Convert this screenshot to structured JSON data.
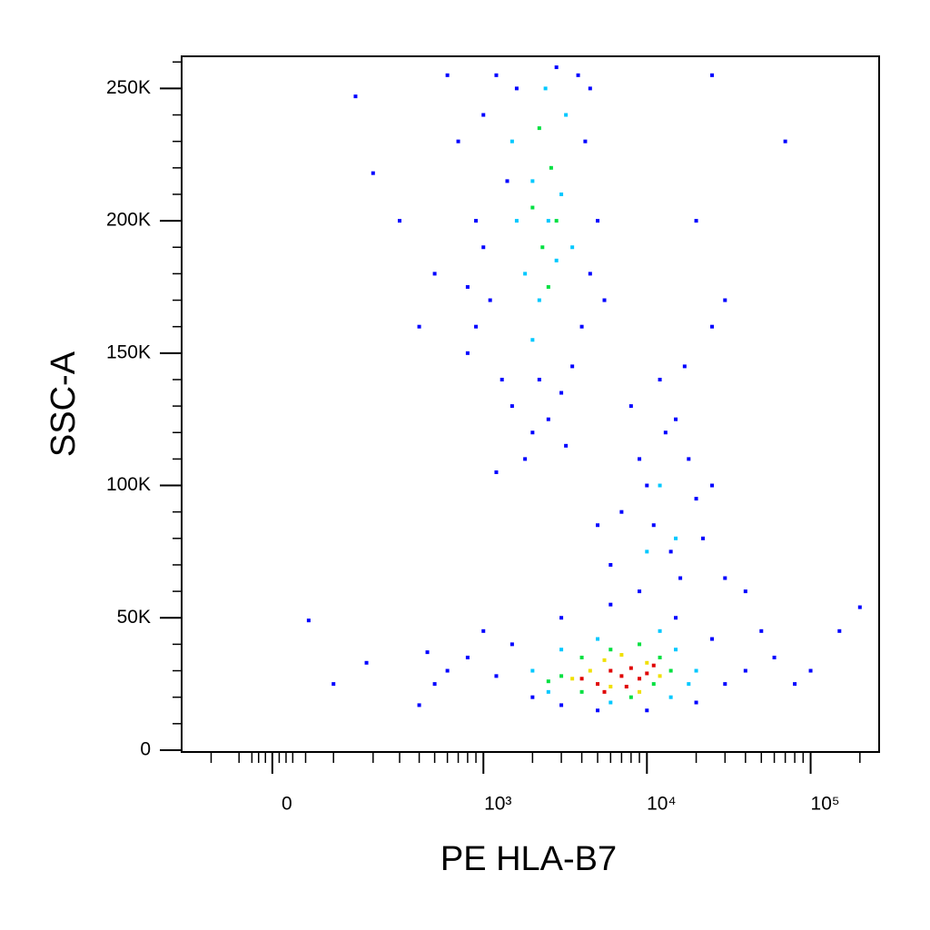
{
  "chart_data": {
    "type": "scatter",
    "x_label": "PE HLA-B7",
    "y_label": "SSC-A",
    "xscale": "biexponential",
    "xlim": [
      -170,
      262144
    ],
    "ylim": [
      -700,
      262144
    ],
    "xticks": [
      {
        "value": 0,
        "label": "0"
      },
      {
        "value": 1000,
        "label": "10³"
      },
      {
        "value": 10000,
        "label": "10⁴"
      },
      {
        "value": 100000,
        "label": "10⁵"
      }
    ],
    "xminorticks": [
      -100,
      -50,
      -30,
      -20,
      -10,
      10,
      20,
      30,
      50,
      100,
      200,
      300,
      400,
      500,
      600,
      700,
      800,
      900,
      2000,
      3000,
      4000,
      5000,
      6000,
      7000,
      8000,
      9000,
      20000,
      30000,
      40000,
      50000,
      60000,
      70000,
      80000,
      90000,
      200000
    ],
    "yticks": [
      0,
      {
        "value": 50000,
        "label": "50K"
      },
      {
        "value": 100000,
        "label": "100K"
      },
      {
        "value": 150000,
        "label": "150K"
      },
      {
        "value": 200000,
        "label": "200K"
      },
      {
        "value": 250000,
        "label": "250K"
      }
    ],
    "yminorticks": [
      10000,
      20000,
      30000,
      40000,
      60000,
      70000,
      80000,
      90000,
      110000,
      120000,
      130000,
      140000,
      160000,
      170000,
      180000,
      190000,
      210000,
      220000,
      230000,
      240000,
      260000
    ],
    "series": [
      {
        "color": "#0000ff",
        "x": [
          800,
          1000,
          1200,
          900,
          1100,
          1300,
          1500,
          2000,
          2500,
          3000,
          3500,
          4000,
          4500,
          5000,
          4200,
          3800,
          1400,
          1000,
          800,
          600,
          700,
          1600,
          2800,
          4500,
          5500,
          3200,
          1800,
          1200,
          900,
          2200,
          200,
          300,
          400,
          150,
          25000,
          70000,
          20000,
          30000,
          25000,
          500,
          8000,
          9000,
          12000,
          15000,
          18000,
          20000,
          10000,
          7000,
          6000,
          11000,
          14000,
          16000,
          22000,
          9000,
          5000,
          13000,
          17000,
          25000,
          30000,
          40000,
          1000,
          1500,
          2000,
          1200,
          800,
          600,
          500,
          3000,
          5000,
          10000,
          20000,
          30000,
          40000,
          60000,
          80000,
          50000,
          25000,
          15000,
          3000,
          6000,
          100000,
          150000,
          200000,
          55,
          100,
          180,
          400,
          450
        ],
        "y": [
          150000,
          240000,
          255000,
          200000,
          170000,
          140000,
          130000,
          120000,
          125000,
          135000,
          145000,
          160000,
          180000,
          200000,
          230000,
          255000,
          215000,
          190000,
          175000,
          255000,
          230000,
          250000,
          258000,
          250000,
          170000,
          115000,
          110000,
          105000,
          160000,
          140000,
          218000,
          200000,
          160000,
          247000,
          255000,
          230000,
          200000,
          170000,
          160000,
          180000,
          130000,
          110000,
          140000,
          125000,
          110000,
          95000,
          100000,
          90000,
          70000,
          85000,
          75000,
          65000,
          80000,
          60000,
          85000,
          120000,
          145000,
          100000,
          65000,
          60000,
          45000,
          40000,
          20000,
          28000,
          35000,
          30000,
          25000,
          17000,
          15000,
          15000,
          18000,
          25000,
          30000,
          35000,
          25000,
          45000,
          42000,
          50000,
          50000,
          55000,
          30000,
          45000,
          54000,
          49000,
          25000,
          33000,
          17000,
          37000
        ]
      },
      {
        "color": "#00c8ff",
        "x": [
          1500,
          2000,
          2500,
          3000,
          1800,
          2200,
          2800,
          1600,
          3200,
          2400,
          2000,
          3500,
          12000,
          15000,
          10000,
          2000,
          3000,
          15000,
          20000,
          2500,
          18000,
          5000,
          12000,
          6000,
          14000
        ],
        "y": [
          230000,
          215000,
          200000,
          210000,
          180000,
          170000,
          185000,
          200000,
          240000,
          250000,
          155000,
          190000,
          100000,
          80000,
          75000,
          30000,
          38000,
          38000,
          30000,
          22000,
          25000,
          42000,
          45000,
          18000,
          20000
        ]
      },
      {
        "color": "#00e040",
        "x": [
          2000,
          2300,
          2600,
          2200,
          2500,
          2800,
          3000,
          4000,
          6000,
          9000,
          12000,
          4000,
          8000,
          11000,
          14000,
          2500
        ],
        "y": [
          205000,
          190000,
          220000,
          235000,
          175000,
          200000,
          28000,
          35000,
          38000,
          40000,
          35000,
          22000,
          20000,
          25000,
          30000,
          26000
        ]
      },
      {
        "color": "#f0e000",
        "x": [
          4500,
          5500,
          7000,
          10000,
          12000,
          6000,
          3500,
          9000
        ],
        "y": [
          30000,
          34000,
          36000,
          33000,
          28000,
          24000,
          27000,
          22000
        ]
      },
      {
        "color": "#e00000",
        "x": [
          4000,
          5000,
          6000,
          7000,
          8000,
          9000,
          10000,
          5500,
          7500,
          11000
        ],
        "y": [
          27000,
          25000,
          30000,
          28000,
          31000,
          27000,
          29000,
          22000,
          24000,
          32000
        ]
      }
    ]
  }
}
